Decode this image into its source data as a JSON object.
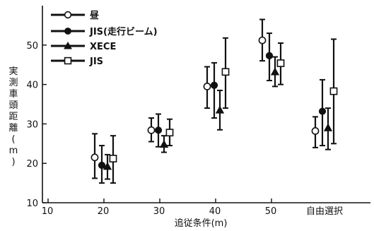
{
  "chart_data": {
    "type": "scatter",
    "subtype": "error-bar",
    "xlabel": "追従条件(m)",
    "ylabel_chars": [
      "実",
      "測",
      "車",
      "頭",
      "距",
      "離",
      "(",
      "m",
      ")"
    ],
    "ylim": [
      10,
      60
    ],
    "y_ticks": [
      10,
      20,
      30,
      40,
      50
    ],
    "categories": [
      "20",
      "30",
      "40",
      "50",
      "自由選択"
    ],
    "x_ticks_numeric": [
      10,
      20,
      30,
      40,
      50
    ],
    "grid": false,
    "legend_position": "top-left",
    "series": [
      {
        "name": "昼",
        "marker": "open-circle",
        "points": [
          {
            "category": "20",
            "mean": 21.5,
            "low": 16.2,
            "high": 27.5
          },
          {
            "category": "30",
            "mean": 28.4,
            "low": 25.5,
            "high": 31.5
          },
          {
            "category": "40",
            "mean": 39.5,
            "low": 34.0,
            "high": 44.5
          },
          {
            "category": "50",
            "mean": 51.2,
            "low": 46.0,
            "high": 56.5
          },
          {
            "category": "自由選択",
            "mean": 28.2,
            "low": 24.0,
            "high": 31.8
          }
        ]
      },
      {
        "name": "JIS(走行ビーム)",
        "marker": "filled-circle",
        "points": [
          {
            "category": "20",
            "mean": 19.5,
            "low": 15.0,
            "high": 24.5
          },
          {
            "category": "30",
            "mean": 28.4,
            "low": 24.2,
            "high": 32.5
          },
          {
            "category": "40",
            "mean": 39.8,
            "low": 31.5,
            "high": 45.5
          },
          {
            "category": "50",
            "mean": 47.3,
            "low": 41.0,
            "high": 53.0
          },
          {
            "category": "自由選択",
            "mean": 33.2,
            "low": 24.5,
            "high": 41.2
          }
        ]
      },
      {
        "name": "XECE",
        "marker": "filled-triangle",
        "points": [
          {
            "category": "20",
            "mean": 19.2,
            "low": 16.0,
            "high": 22.2
          },
          {
            "category": "30",
            "mean": 24.8,
            "low": 22.8,
            "high": 27.0
          },
          {
            "category": "40",
            "mean": 33.5,
            "low": 28.5,
            "high": 38.5
          },
          {
            "category": "50",
            "mean": 43.2,
            "low": 39.5,
            "high": 47.0
          },
          {
            "category": "自由選択",
            "mean": 29.0,
            "low": 23.5,
            "high": 34.0
          }
        ]
      },
      {
        "name": "JIS",
        "marker": "open-square",
        "points": [
          {
            "category": "20",
            "mean": 21.2,
            "low": 15.0,
            "high": 27.0
          },
          {
            "category": "30",
            "mean": 27.8,
            "low": 24.5,
            "high": 31.2
          },
          {
            "category": "40",
            "mean": 43.2,
            "low": 34.0,
            "high": 51.8
          },
          {
            "category": "50",
            "mean": 45.4,
            "low": 40.0,
            "high": 50.5
          },
          {
            "category": "自由選択",
            "mean": 38.3,
            "low": 25.0,
            "high": 51.5
          }
        ]
      }
    ]
  }
}
